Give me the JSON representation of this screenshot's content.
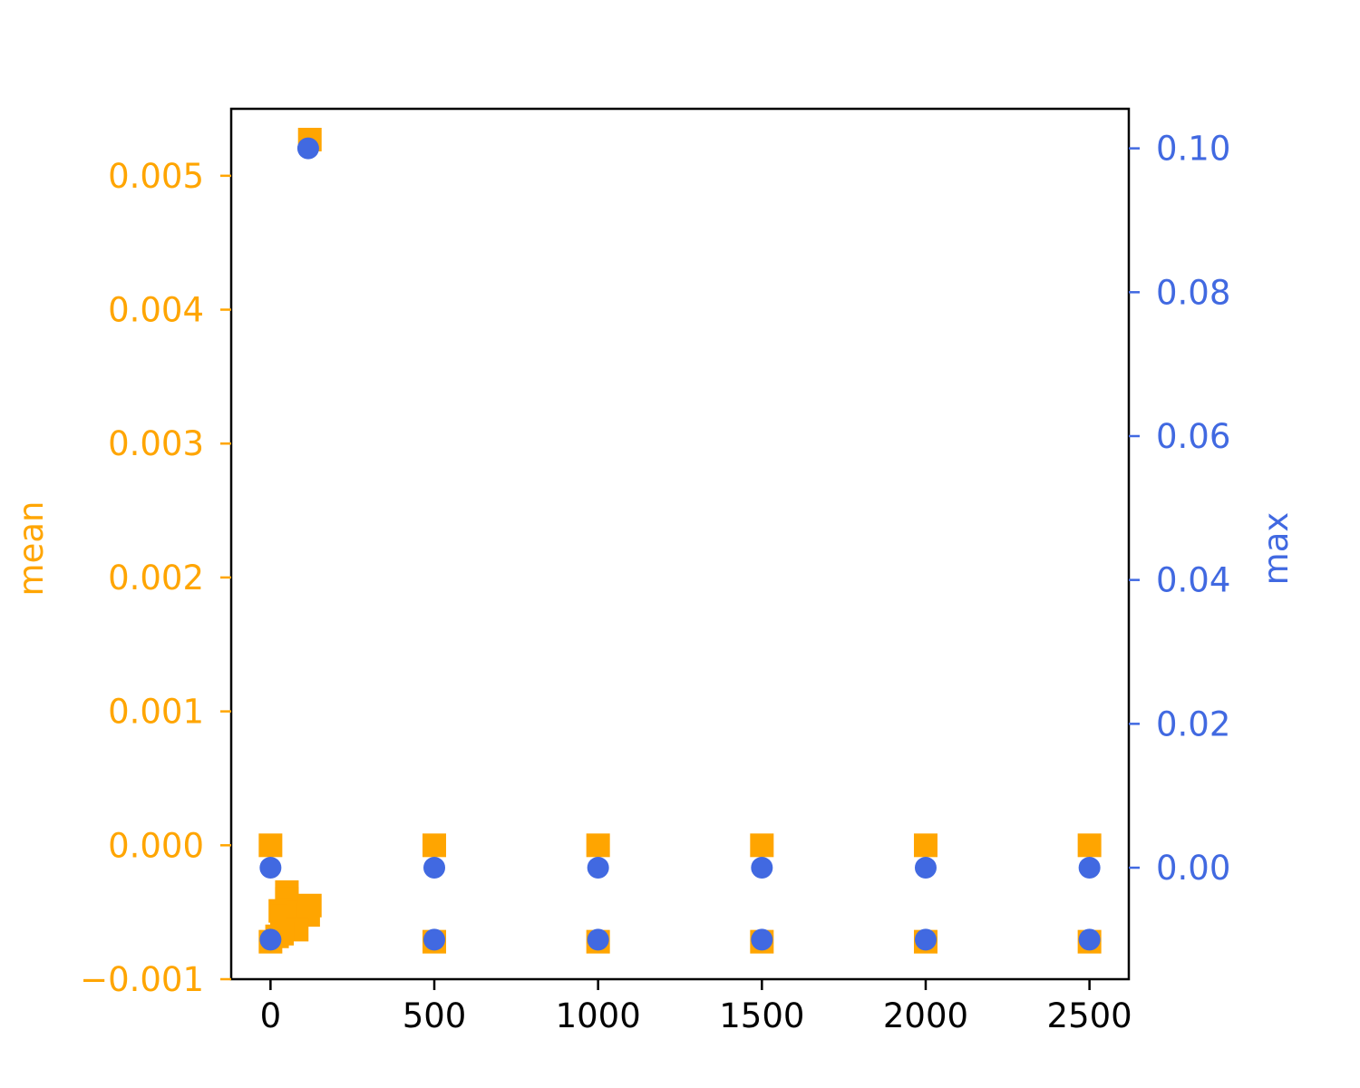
{
  "chart_data": {
    "type": "scatter",
    "title": "",
    "xlabel": "",
    "ylabel_left": "mean",
    "ylabel_right": "max",
    "xlim": [
      -120,
      2620
    ],
    "ylim_left": [
      -0.001,
      0.0055
    ],
    "ylim_right": [
      -0.0155,
      0.1055
    ],
    "x_ticks": [
      0,
      500,
      1000,
      1500,
      2000,
      2500
    ],
    "x_tick_labels": [
      "0",
      "500",
      "1000",
      "1500",
      "2000",
      "2500"
    ],
    "y_left_ticks": [
      -0.001,
      0,
      0.001,
      0.002,
      0.003,
      0.004,
      0.005
    ],
    "y_left_tick_labels": [
      "−0.001",
      "0.000",
      "0.001",
      "0.002",
      "0.003",
      "0.004",
      "0.005"
    ],
    "y_right_ticks": [
      0,
      0.02,
      0.04,
      0.06,
      0.08,
      0.1
    ],
    "y_right_tick_labels": [
      "0.00",
      "0.02",
      "0.04",
      "0.06",
      "0.08",
      "0.10"
    ],
    "grid": false,
    "legend": "none",
    "series": [
      {
        "name": "mean",
        "axis": "left",
        "color": "#FFA500",
        "marker": "square",
        "points": [
          {
            "x": 0,
            "y": 0
          },
          {
            "x": 500,
            "y": 0
          },
          {
            "x": 1000,
            "y": 0
          },
          {
            "x": 1500,
            "y": 0
          },
          {
            "x": 2000,
            "y": 0
          },
          {
            "x": 2500,
            "y": 0
          },
          {
            "x": 0,
            "y": -0.00072
          },
          {
            "x": 500,
            "y": -0.00072
          },
          {
            "x": 1000,
            "y": -0.00072
          },
          {
            "x": 1500,
            "y": -0.00072
          },
          {
            "x": 2000,
            "y": -0.00072
          },
          {
            "x": 2500,
            "y": -0.00072
          },
          {
            "x": 120,
            "y": 0.00527
          },
          {
            "x": 50,
            "y": -0.00035
          },
          {
            "x": 50,
            "y": -0.0004
          },
          {
            "x": 60,
            "y": -0.00046
          },
          {
            "x": 30,
            "y": -0.00049
          },
          {
            "x": 40,
            "y": -0.00053
          },
          {
            "x": 85,
            "y": -0.0005
          },
          {
            "x": 120,
            "y": -0.00045
          },
          {
            "x": 115,
            "y": -0.00052
          },
          {
            "x": 80,
            "y": -0.00063
          },
          {
            "x": 35,
            "y": -0.00066
          },
          {
            "x": 20,
            "y": -0.00068
          }
        ]
      },
      {
        "name": "max",
        "axis": "right",
        "color": "#4169E1",
        "marker": "circle",
        "points": [
          {
            "x": 0,
            "y": 0
          },
          {
            "x": 500,
            "y": 0
          },
          {
            "x": 1000,
            "y": 0
          },
          {
            "x": 1500,
            "y": 0
          },
          {
            "x": 2000,
            "y": 0
          },
          {
            "x": 2500,
            "y": 0
          },
          {
            "x": 0,
            "y": -0.01
          },
          {
            "x": 500,
            "y": -0.01
          },
          {
            "x": 1000,
            "y": -0.01
          },
          {
            "x": 1500,
            "y": -0.01
          },
          {
            "x": 2000,
            "y": -0.01
          },
          {
            "x": 2500,
            "y": -0.01
          },
          {
            "x": 115,
            "y": 0.1
          }
        ]
      }
    ],
    "colors": {
      "left_axis": "#FFA500",
      "right_axis": "#4169E1",
      "x_axis": "#000000"
    }
  }
}
